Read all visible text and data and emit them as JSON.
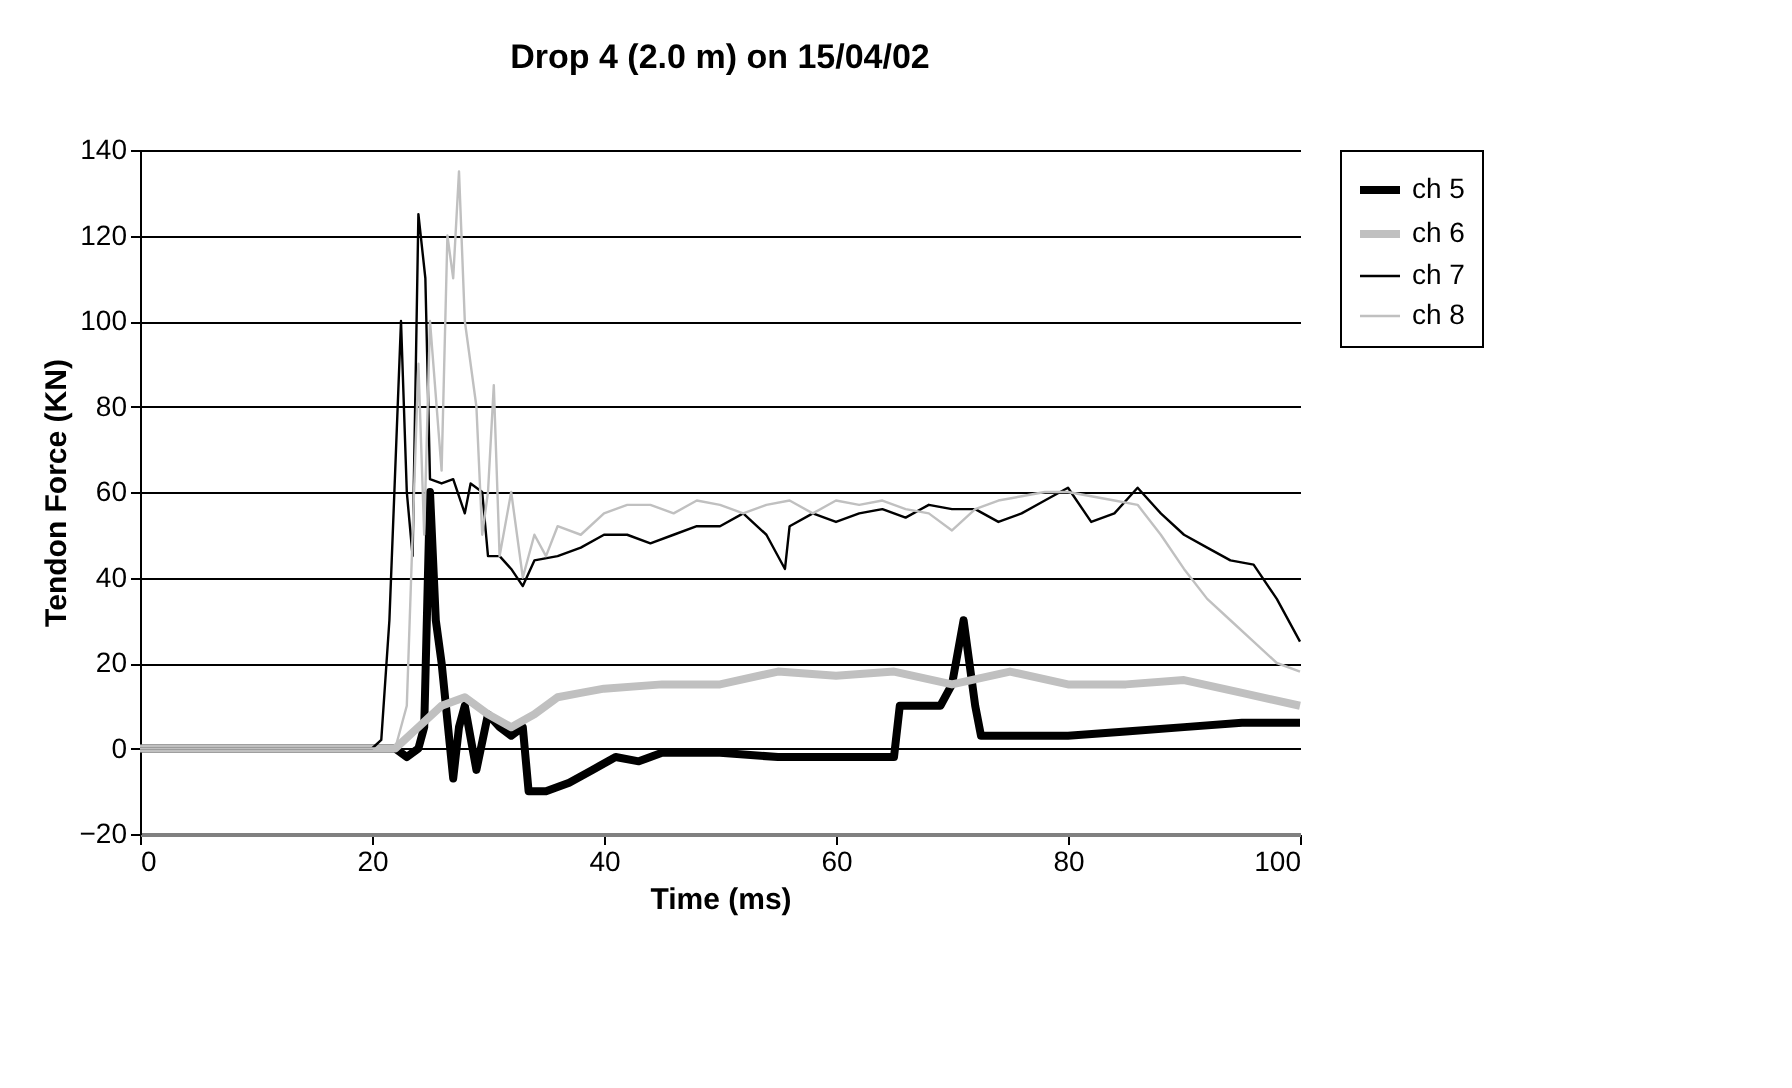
{
  "chart_data": {
    "type": "line",
    "title": "Drop 4 (2.0 m) on 15/04/02",
    "xlabel": "Time (ms)",
    "ylabel": "Tendon Force (KN)",
    "xlim": [
      0,
      100
    ],
    "xticks": [
      0,
      20,
      40,
      60,
      80,
      100
    ],
    "ylim": [
      -20,
      140
    ],
    "yticks": [
      -20,
      0,
      20,
      40,
      60,
      80,
      100,
      120,
      140
    ],
    "grid": "y",
    "legend": "right",
    "marker": "none",
    "line_style": "solid",
    "series": [
      {
        "name": "ch 5",
        "color": "#000000",
        "x": [
          0,
          22,
          23,
          24,
          24.5,
          25,
          25.5,
          26,
          27,
          27.5,
          28,
          29,
          30,
          31,
          32,
          33,
          33.5,
          35,
          37,
          39,
          41,
          43,
          45,
          50,
          55,
          60,
          65,
          65.5,
          69,
          70,
          71,
          72,
          72.5,
          75,
          80,
          85,
          90,
          95,
          100
        ],
        "values": [
          0,
          0,
          -2,
          0,
          5,
          60,
          30,
          20,
          -7,
          5,
          10,
          -5,
          8,
          5,
          3,
          5,
          -10,
          -10,
          -8,
          -5,
          -2,
          -3,
          -1,
          -1,
          -2,
          -2,
          -2,
          10,
          10,
          15,
          30,
          10,
          3,
          3,
          3,
          4,
          5,
          6,
          6
        ]
      },
      {
        "name": "ch 6",
        "color": "#c0c0c0",
        "x": [
          0,
          22,
          24,
          26,
          28,
          30,
          32,
          34,
          36,
          38,
          40,
          45,
          50,
          55,
          60,
          65,
          70,
          75,
          80,
          85,
          90,
          95,
          100
        ],
        "values": [
          0,
          0,
          5,
          10,
          12,
          8,
          5,
          8,
          12,
          13,
          14,
          15,
          15,
          18,
          17,
          18,
          15,
          18,
          15,
          15,
          16,
          13,
          10
        ]
      },
      {
        "name": "ch 7",
        "color": "#000000",
        "x": [
          0,
          20,
          20.8,
          21.5,
          22.5,
          23,
          23.5,
          24,
          24.6,
          25,
          26,
          27,
          28,
          28.5,
          29.5,
          30,
          31,
          32,
          33,
          34,
          36,
          38,
          40,
          42,
          44,
          46,
          48,
          50,
          52,
          54,
          55.6,
          56,
          58,
          60,
          62,
          64,
          66,
          68,
          70,
          72,
          74,
          76,
          78,
          80,
          82,
          84,
          86,
          88,
          90,
          92,
          94,
          96,
          98,
          100
        ],
        "values": [
          0,
          0,
          2,
          30,
          100,
          60,
          45,
          125,
          110,
          63,
          62,
          63,
          55,
          62,
          60,
          45,
          45,
          42,
          38,
          44,
          45,
          47,
          50,
          50,
          48,
          50,
          52,
          52,
          55,
          50,
          42,
          52,
          55,
          53,
          55,
          56,
          54,
          57,
          56,
          56,
          53,
          55,
          58,
          61,
          53,
          55,
          61,
          55,
          50,
          47,
          44,
          43,
          35,
          25
        ]
      },
      {
        "name": "ch 8",
        "color": "#c0c0c0",
        "x": [
          0,
          22,
          23,
          24,
          24.5,
          25,
          26,
          26.5,
          27,
          27.5,
          28,
          29,
          29.5,
          30,
          30.5,
          31,
          32,
          33,
          34,
          35,
          36,
          38,
          40,
          42,
          44,
          46,
          48,
          50,
          52,
          54,
          56,
          58,
          60,
          62,
          64,
          66,
          68,
          70,
          72,
          74,
          76,
          78,
          80,
          82,
          84,
          86,
          88,
          90,
          92,
          94,
          96,
          98,
          100
        ],
        "values": [
          0,
          0,
          10,
          90,
          50,
          100,
          65,
          120,
          110,
          135,
          100,
          80,
          50,
          60,
          85,
          45,
          60,
          40,
          50,
          45,
          52,
          50,
          55,
          57,
          57,
          55,
          58,
          57,
          55,
          57,
          58,
          55,
          58,
          57,
          58,
          56,
          55,
          51,
          56,
          58,
          59,
          60,
          60,
          59,
          58,
          57,
          50,
          42,
          35,
          30,
          25,
          20,
          18
        ]
      }
    ]
  }
}
